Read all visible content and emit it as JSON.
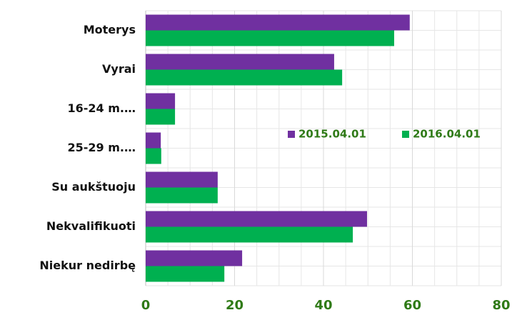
{
  "chart_data": {
    "type": "hbar",
    "categories": [
      "Moterys",
      "Vyrai",
      "16-24 m.…",
      "25-29 m.…",
      "Su aukštuoju",
      "Nekvalifikuoti",
      "Niekur nedirbę"
    ],
    "series": [
      {
        "name": "2015.04.01",
        "color": "#7030a0",
        "values": [
          59.4,
          42.4,
          6.6,
          3.4,
          16.2,
          49.8,
          21.7
        ]
      },
      {
        "name": "2016.04.01",
        "color": "#00b050",
        "values": [
          55.9,
          44.2,
          6.6,
          3.5,
          16.2,
          46.6,
          17.7
        ]
      }
    ],
    "xlim": [
      0,
      80
    ],
    "xticks": [
      0,
      20,
      40,
      60,
      80
    ],
    "grid": true,
    "legend": "right"
  }
}
